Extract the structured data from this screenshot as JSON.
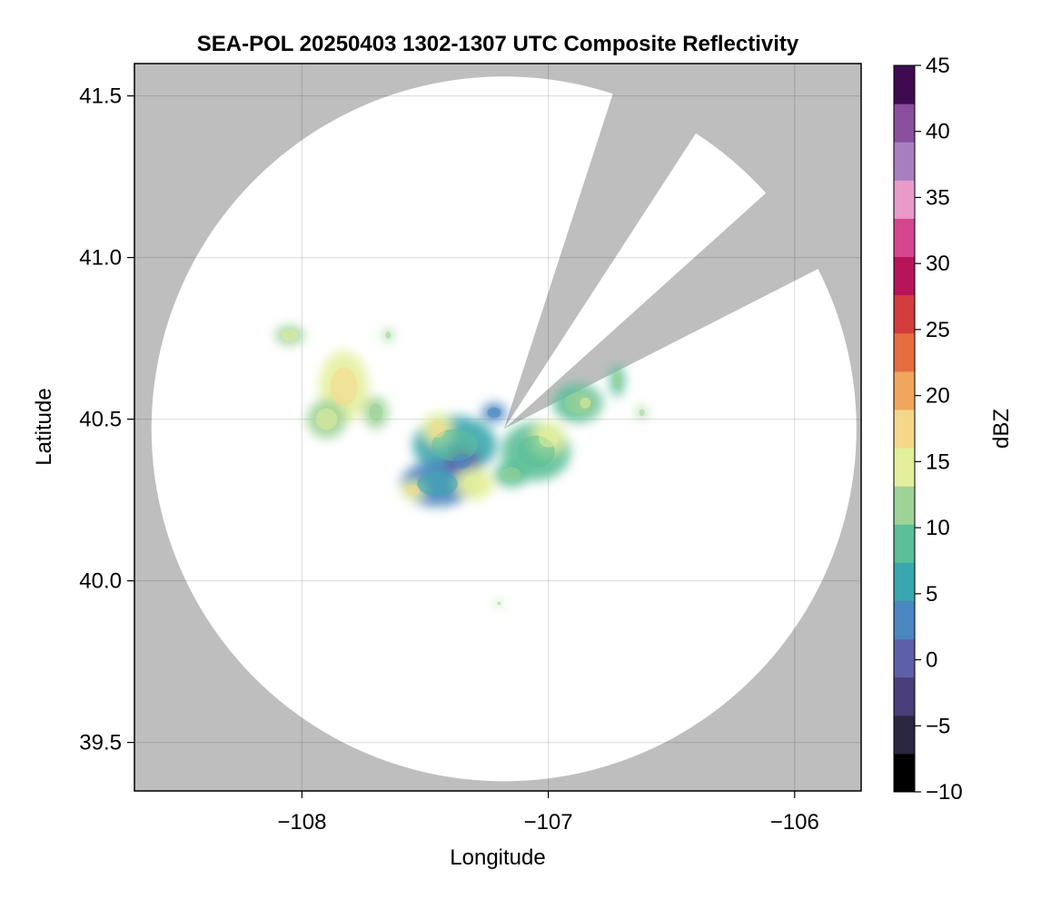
{
  "chart_data": {
    "type": "heatmap",
    "title": "SEA-POL 20250403 1302-1307 UTC Composite Reflectivity",
    "xlabel": "Longitude",
    "ylabel": "Latitude",
    "xlim": [
      -108.68,
      -105.73
    ],
    "ylim": [
      39.35,
      41.6
    ],
    "xticks": [
      -108,
      -107,
      -106
    ],
    "xtick_labels": [
      "−108",
      "−107",
      "−106"
    ],
    "yticks": [
      39.5,
      40.0,
      40.5,
      41.0,
      41.5
    ],
    "ytick_labels": [
      "39.5",
      "40.0",
      "40.5",
      "41.0",
      "41.5"
    ],
    "grid": true,
    "background_color": "#bebebe",
    "coverage_color": "#ffffff",
    "radar_site": {
      "lon": -107.18,
      "lat": 40.47
    },
    "coverage_radius_lat": 1.09,
    "blocked_sector_deg": [
      [
        18,
        33
      ],
      [
        48,
        63
      ]
    ],
    "colorbar": {
      "label": "dBZ",
      "min": -10,
      "max": 45,
      "ticks": [
        -10,
        -5,
        0,
        5,
        10,
        15,
        20,
        25,
        30,
        35,
        40,
        45
      ],
      "tick_labels": [
        "−10",
        "−5",
        "0",
        "5",
        "10",
        "15",
        "20",
        "25",
        "30",
        "35",
        "40",
        "45"
      ],
      "colors": [
        "#000000",
        "#2a2640",
        "#4a3f7a",
        "#5d5fa8",
        "#4a86bf",
        "#3aa6ad",
        "#5bbf98",
        "#9ed398",
        "#e4ef9d",
        "#f5d78a",
        "#f0a65e",
        "#e66d3f",
        "#d23c3c",
        "#b8145a",
        "#d6458f",
        "#e99ac9",
        "#a77fc0",
        "#8a4e9e",
        "#3f0a50"
      ]
    },
    "echoes": [
      {
        "lon": -107.83,
        "lat": 40.6,
        "rlon": 0.1,
        "rlat": 0.11,
        "dbz": 15
      },
      {
        "lon": -107.9,
        "lat": 40.5,
        "rlon": 0.08,
        "rlat": 0.06,
        "dbz": 13
      },
      {
        "lon": -107.7,
        "lat": 40.52,
        "rlon": 0.05,
        "rlat": 0.05,
        "dbz": 11
      },
      {
        "lon": -108.05,
        "lat": 40.76,
        "rlon": 0.06,
        "rlat": 0.03,
        "dbz": 13
      },
      {
        "lon": -107.65,
        "lat": 40.76,
        "rlon": 0.02,
        "rlat": 0.02,
        "dbz": 11
      },
      {
        "lon": -107.38,
        "lat": 40.42,
        "rlon": 0.17,
        "rlat": 0.09,
        "dbz": 7
      },
      {
        "lon": -107.45,
        "lat": 40.3,
        "rlon": 0.15,
        "rlat": 0.07,
        "dbz": 4
      },
      {
        "lon": -107.35,
        "lat": 40.37,
        "rlon": 0.07,
        "rlat": 0.04,
        "dbz": 1
      },
      {
        "lon": -107.3,
        "lat": 40.3,
        "rlon": 0.08,
        "rlat": 0.05,
        "dbz": 14
      },
      {
        "lon": -107.55,
        "lat": 40.28,
        "rlon": 0.05,
        "rlat": 0.03,
        "dbz": 16
      },
      {
        "lon": -107.45,
        "lat": 40.47,
        "rlon": 0.06,
        "rlat": 0.05,
        "dbz": 15
      },
      {
        "lon": -107.05,
        "lat": 40.4,
        "rlon": 0.14,
        "rlat": 0.09,
        "dbz": 8
      },
      {
        "lon": -107.0,
        "lat": 40.44,
        "rlon": 0.07,
        "rlat": 0.05,
        "dbz": 14
      },
      {
        "lon": -107.15,
        "lat": 40.33,
        "rlon": 0.07,
        "rlat": 0.04,
        "dbz": 10
      },
      {
        "lon": -106.88,
        "lat": 40.55,
        "rlon": 0.1,
        "rlat": 0.06,
        "dbz": 9
      },
      {
        "lon": -106.85,
        "lat": 40.55,
        "rlon": 0.04,
        "rlat": 0.03,
        "dbz": 13
      },
      {
        "lon": -106.72,
        "lat": 40.62,
        "rlon": 0.03,
        "rlat": 0.05,
        "dbz": 10
      },
      {
        "lon": -106.62,
        "lat": 40.52,
        "rlon": 0.02,
        "rlat": 0.02,
        "dbz": 11
      },
      {
        "lon": -107.22,
        "lat": 40.52,
        "rlon": 0.05,
        "rlat": 0.03,
        "dbz": 2
      },
      {
        "lon": -107.2,
        "lat": 39.93,
        "rlon": 0.015,
        "rlat": 0.01,
        "dbz": 11
      }
    ]
  }
}
